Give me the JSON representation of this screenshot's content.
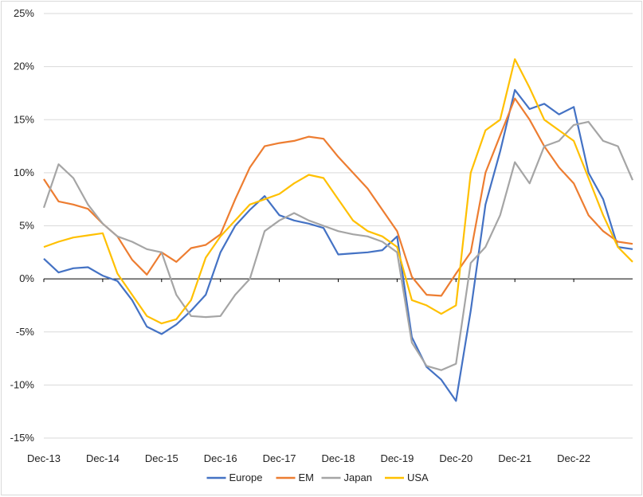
{
  "chart_data": {
    "type": "line",
    "title": "",
    "xlabel": "",
    "ylabel": "",
    "x_axis": {
      "range": [
        "Dec-13",
        "Dec-23"
      ],
      "tick_labels": [
        "Dec-13",
        "Dec-14",
        "Dec-15",
        "Dec-16",
        "Dec-17",
        "Dec-18",
        "Dec-19",
        "Dec-20",
        "Dec-21",
        "Dec-22"
      ]
    },
    "y_axis": {
      "range": [
        -15,
        25
      ],
      "ticks": [
        -15,
        -10,
        -5,
        0,
        5,
        10,
        15,
        20,
        25
      ],
      "tick_labels": [
        "-15%",
        "-10%",
        "-5%",
        "0%",
        "5%",
        "10%",
        "15%",
        "20%",
        "25%"
      ]
    },
    "grid": "horizontal",
    "legend_position": "bottom",
    "series": [
      {
        "name": "Europe",
        "color": "#4472C4",
        "points": [
          [
            "Dec-13",
            1.9
          ],
          [
            "Mar-14",
            0.6
          ],
          [
            "Jun-14",
            1.0
          ],
          [
            "Sep-14",
            1.1
          ],
          [
            "Dec-14",
            0.3
          ],
          [
            "Mar-15",
            -0.2
          ],
          [
            "Jun-15",
            -2.0
          ],
          [
            "Sep-15",
            -4.5
          ],
          [
            "Dec-15",
            -5.2
          ],
          [
            "Mar-16",
            -4.3
          ],
          [
            "Jun-16",
            -3.0
          ],
          [
            "Sep-16",
            -1.5
          ],
          [
            "Dec-16",
            2.5
          ],
          [
            "Mar-17",
            5.0
          ],
          [
            "Jun-17",
            6.5
          ],
          [
            "Sep-17",
            7.8
          ],
          [
            "Dec-17",
            6.0
          ],
          [
            "Mar-18",
            5.5
          ],
          [
            "Jun-18",
            5.2
          ],
          [
            "Sep-18",
            4.8
          ],
          [
            "Dec-18",
            2.3
          ],
          [
            "Mar-19",
            2.4
          ],
          [
            "Jun-19",
            2.5
          ],
          [
            "Sep-19",
            2.7
          ],
          [
            "Dec-19",
            4.0
          ],
          [
            "Mar-20",
            -5.5
          ],
          [
            "Jun-20",
            -8.3
          ],
          [
            "Sep-20",
            -9.5
          ],
          [
            "Dec-20",
            -11.5
          ],
          [
            "Mar-21",
            -3.0
          ],
          [
            "Jun-21",
            7.0
          ],
          [
            "Sep-21",
            12.0
          ],
          [
            "Dec-21",
            17.8
          ],
          [
            "Mar-22",
            16.0
          ],
          [
            "Jun-22",
            16.5
          ],
          [
            "Sep-22",
            15.5
          ],
          [
            "Dec-22",
            16.2
          ],
          [
            "Mar-23",
            10.0
          ],
          [
            "Jun-23",
            7.5
          ],
          [
            "Sep-23",
            3.0
          ],
          [
            "Dec-23",
            2.8
          ]
        ]
      },
      {
        "name": "EM",
        "color": "#ED7D31",
        "points": [
          [
            "Dec-13",
            9.4
          ],
          [
            "Mar-14",
            7.3
          ],
          [
            "Jun-14",
            7.0
          ],
          [
            "Sep-14",
            6.6
          ],
          [
            "Dec-14",
            5.2
          ],
          [
            "Mar-15",
            4.0
          ],
          [
            "Jun-15",
            1.8
          ],
          [
            "Sep-15",
            0.4
          ],
          [
            "Dec-15",
            2.5
          ],
          [
            "Mar-16",
            1.6
          ],
          [
            "Jun-16",
            2.9
          ],
          [
            "Sep-16",
            3.2
          ],
          [
            "Dec-16",
            4.2
          ],
          [
            "Mar-17",
            7.5
          ],
          [
            "Jun-17",
            10.5
          ],
          [
            "Sep-17",
            12.5
          ],
          [
            "Dec-17",
            12.8
          ],
          [
            "Mar-18",
            13.0
          ],
          [
            "Jun-18",
            13.4
          ],
          [
            "Sep-18",
            13.2
          ],
          [
            "Dec-18",
            11.5
          ],
          [
            "Mar-19",
            10.0
          ],
          [
            "Jun-19",
            8.5
          ],
          [
            "Sep-19",
            6.5
          ],
          [
            "Dec-19",
            4.5
          ],
          [
            "Mar-20",
            0.2
          ],
          [
            "Jun-20",
            -1.5
          ],
          [
            "Sep-20",
            -1.6
          ],
          [
            "Dec-20",
            0.5
          ],
          [
            "Mar-21",
            2.5
          ],
          [
            "Jun-21",
            10.0
          ],
          [
            "Sep-21",
            13.5
          ],
          [
            "Dec-21",
            17.0
          ],
          [
            "Mar-22",
            15.0
          ],
          [
            "Jun-22",
            12.5
          ],
          [
            "Sep-22",
            10.5
          ],
          [
            "Dec-22",
            9.0
          ],
          [
            "Mar-23",
            6.0
          ],
          [
            "Jun-23",
            4.5
          ],
          [
            "Sep-23",
            3.5
          ],
          [
            "Dec-23",
            3.3
          ]
        ]
      },
      {
        "name": "Japan",
        "color": "#A5A5A5",
        "points": [
          [
            "Dec-13",
            6.7
          ],
          [
            "Mar-14",
            10.8
          ],
          [
            "Jun-14",
            9.5
          ],
          [
            "Sep-14",
            7.0
          ],
          [
            "Dec-14",
            5.2
          ],
          [
            "Mar-15",
            4.0
          ],
          [
            "Jun-15",
            3.5
          ],
          [
            "Sep-15",
            2.8
          ],
          [
            "Dec-15",
            2.5
          ],
          [
            "Mar-16",
            -1.5
          ],
          [
            "Jun-16",
            -3.5
          ],
          [
            "Sep-16",
            -3.6
          ],
          [
            "Dec-16",
            -3.5
          ],
          [
            "Mar-17",
            -1.5
          ],
          [
            "Jun-17",
            0.0
          ],
          [
            "Sep-17",
            4.5
          ],
          [
            "Dec-17",
            5.5
          ],
          [
            "Mar-18",
            6.2
          ],
          [
            "Jun-18",
            5.5
          ],
          [
            "Sep-18",
            5.0
          ],
          [
            "Dec-18",
            4.5
          ],
          [
            "Mar-19",
            4.2
          ],
          [
            "Jun-19",
            4.0
          ],
          [
            "Sep-19",
            3.5
          ],
          [
            "Dec-19",
            2.5
          ],
          [
            "Mar-20",
            -6.0
          ],
          [
            "Jun-20",
            -8.2
          ],
          [
            "Sep-20",
            -8.6
          ],
          [
            "Dec-20",
            -8.0
          ],
          [
            "Mar-21",
            1.5
          ],
          [
            "Jun-21",
            3.0
          ],
          [
            "Sep-21",
            6.0
          ],
          [
            "Dec-21",
            11.0
          ],
          [
            "Mar-22",
            9.0
          ],
          [
            "Jun-22",
            12.5
          ],
          [
            "Sep-22",
            13.0
          ],
          [
            "Dec-22",
            14.5
          ],
          [
            "Mar-23",
            14.8
          ],
          [
            "Jun-23",
            13.0
          ],
          [
            "Sep-23",
            12.5
          ],
          [
            "Dec-23",
            9.3
          ]
        ]
      },
      {
        "name": "USA",
        "color": "#FFC000",
        "points": [
          [
            "Dec-13",
            3.0
          ],
          [
            "Mar-14",
            3.5
          ],
          [
            "Jun-14",
            3.9
          ],
          [
            "Sep-14",
            4.1
          ],
          [
            "Dec-14",
            4.3
          ],
          [
            "Mar-15",
            0.5
          ],
          [
            "Jun-15",
            -1.5
          ],
          [
            "Sep-15",
            -3.5
          ],
          [
            "Dec-15",
            -4.2
          ],
          [
            "Mar-16",
            -3.8
          ],
          [
            "Jun-16",
            -2.0
          ],
          [
            "Sep-16",
            2.0
          ],
          [
            "Dec-16",
            4.0
          ],
          [
            "Mar-17",
            5.5
          ],
          [
            "Jun-17",
            7.0
          ],
          [
            "Sep-17",
            7.5
          ],
          [
            "Dec-17",
            8.0
          ],
          [
            "Mar-18",
            9.0
          ],
          [
            "Jun-18",
            9.8
          ],
          [
            "Sep-18",
            9.5
          ],
          [
            "Dec-18",
            7.5
          ],
          [
            "Mar-19",
            5.5
          ],
          [
            "Jun-19",
            4.5
          ],
          [
            "Sep-19",
            4.0
          ],
          [
            "Dec-19",
            3.0
          ],
          [
            "Mar-20",
            -2.0
          ],
          [
            "Jun-20",
            -2.5
          ],
          [
            "Sep-20",
            -3.3
          ],
          [
            "Dec-20",
            -2.5
          ],
          [
            "Mar-21",
            10.0
          ],
          [
            "Jun-21",
            14.0
          ],
          [
            "Sep-21",
            15.0
          ],
          [
            "Dec-21",
            20.7
          ],
          [
            "Mar-22",
            18.0
          ],
          [
            "Jun-22",
            15.0
          ],
          [
            "Sep-22",
            14.0
          ],
          [
            "Dec-22",
            13.0
          ],
          [
            "Mar-23",
            9.5
          ],
          [
            "Jun-23",
            6.0
          ],
          [
            "Sep-23",
            3.0
          ],
          [
            "Dec-23",
            1.6
          ]
        ]
      }
    ]
  }
}
